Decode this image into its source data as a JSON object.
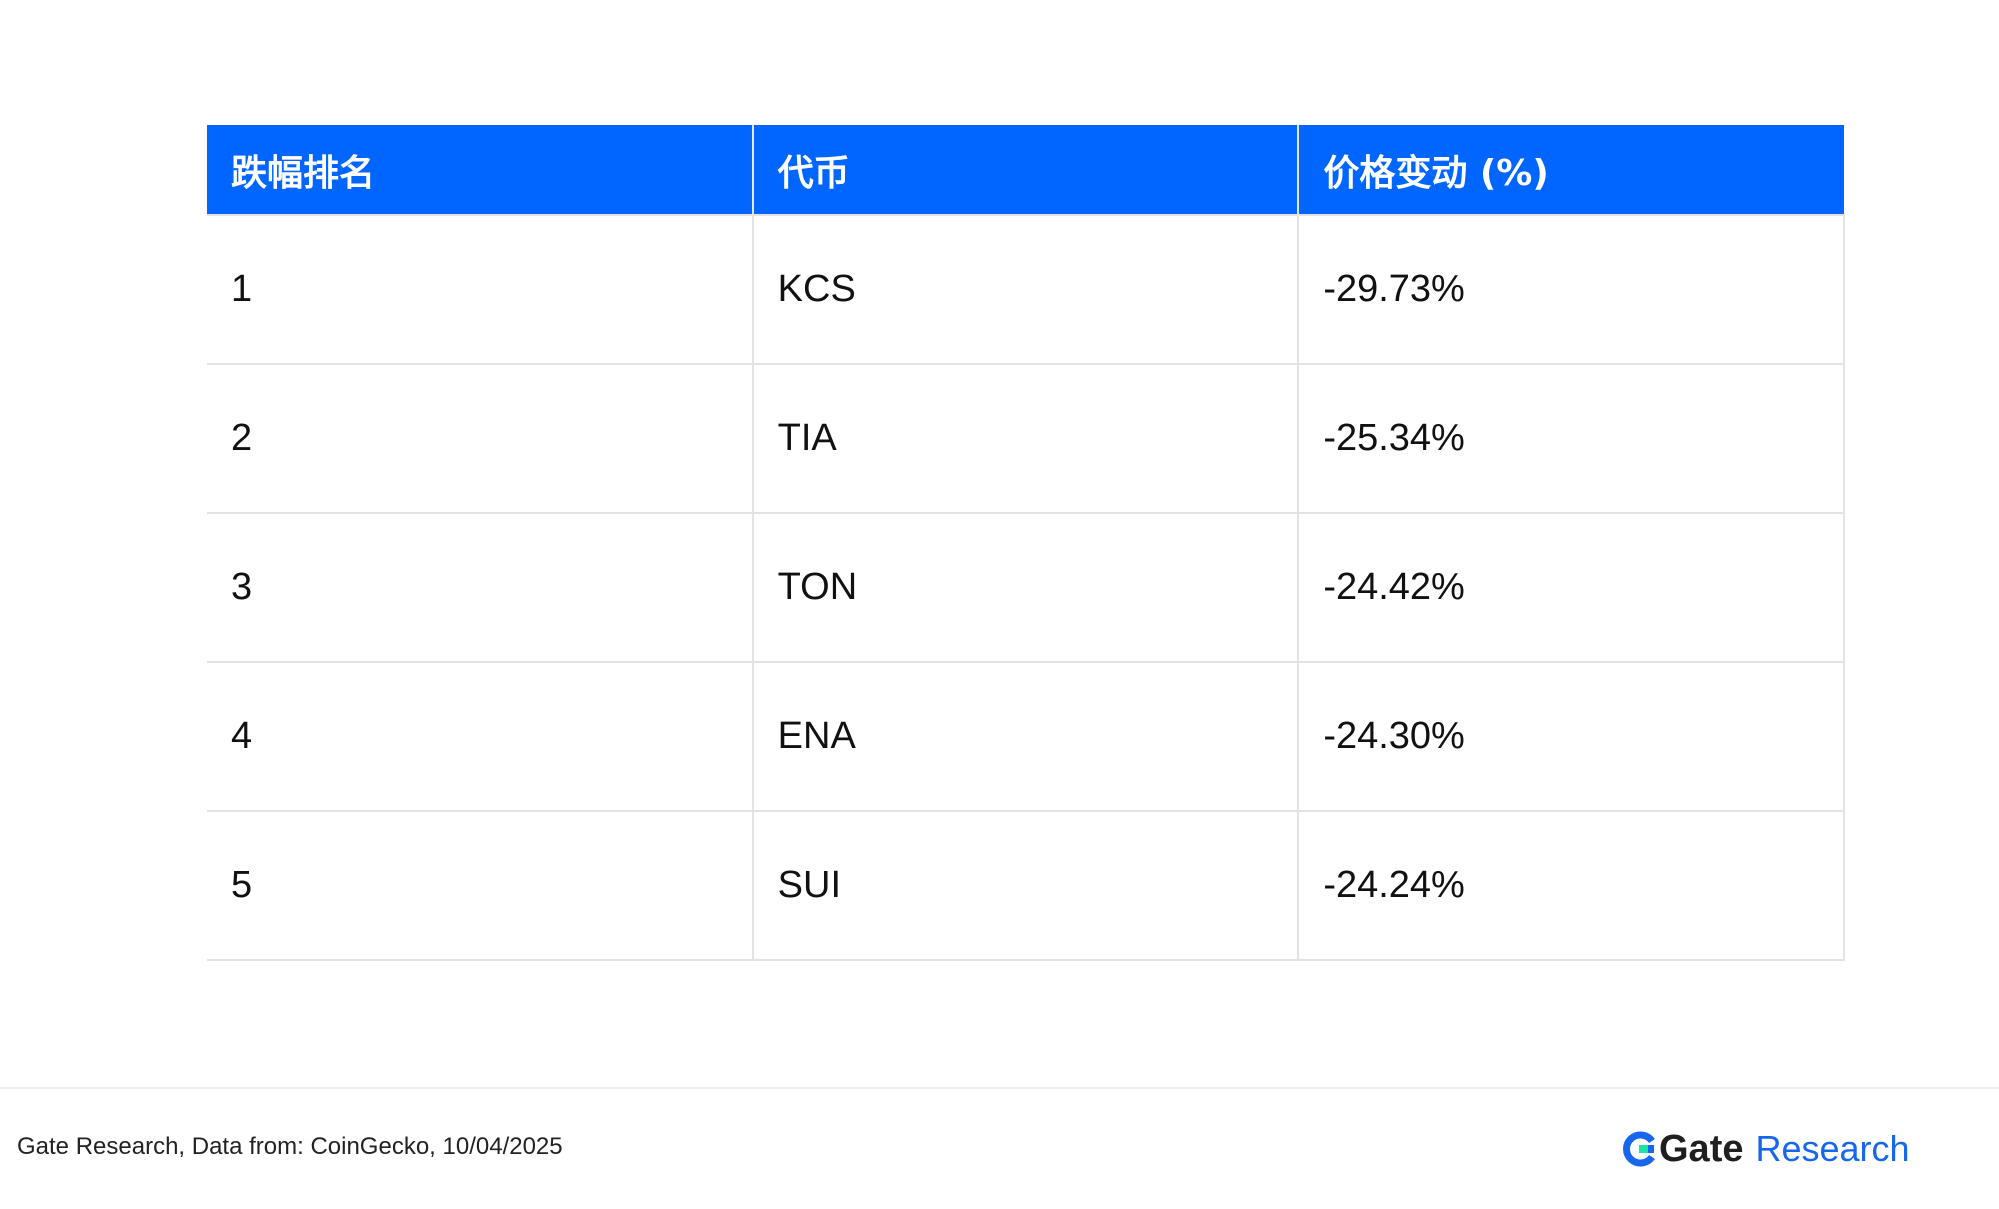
{
  "chart_data": {
    "type": "table",
    "columns": [
      "跌幅排名",
      "代币",
      "价格变动 (%)"
    ],
    "rows": [
      [
        "1",
        "KCS",
        "-29.73%"
      ],
      [
        "2",
        "TIA",
        "-25.34%"
      ],
      [
        "3",
        "TON",
        "-24.42%"
      ],
      [
        "4",
        "ENA",
        "-24.30%"
      ],
      [
        "5",
        "SUI",
        "-24.24%"
      ]
    ]
  },
  "footer": {
    "source": "Gate Research, Data from: CoinGecko, 10/04/2025",
    "brand_name": "Gate",
    "brand_suffix": "Research"
  },
  "colors": {
    "header_bg": "#0066ff",
    "brand_blue": "#1766ee",
    "logo_green": "#17e5a0"
  }
}
